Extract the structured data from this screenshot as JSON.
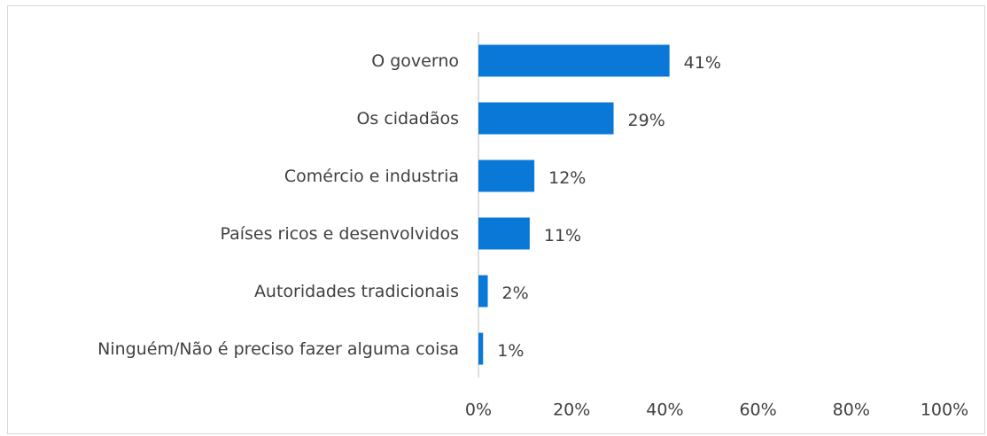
{
  "chart_data": {
    "type": "bar",
    "orientation": "horizontal",
    "categories": [
      "O governo",
      "Os cidadãos",
      "Comércio e industria",
      "Países ricos e desenvolvidos",
      "Autoridades tradicionais",
      "Ninguém/Não é preciso fazer alguma coisa"
    ],
    "values": [
      41,
      29,
      12,
      11,
      2,
      1
    ],
    "value_labels": [
      "41%",
      "29%",
      "12%",
      "11%",
      "2%",
      "1%"
    ],
    "color": "#0a78d7",
    "xlim": [
      0,
      100
    ],
    "xticks": [
      {
        "value": 0,
        "label": "0%"
      },
      {
        "value": 20,
        "label": "20%"
      },
      {
        "value": 40,
        "label": "40%"
      },
      {
        "value": 60,
        "label": "60%"
      },
      {
        "value": 80,
        "label": "80%"
      },
      {
        "value": 100,
        "label": "100%"
      }
    ],
    "grid": false
  }
}
